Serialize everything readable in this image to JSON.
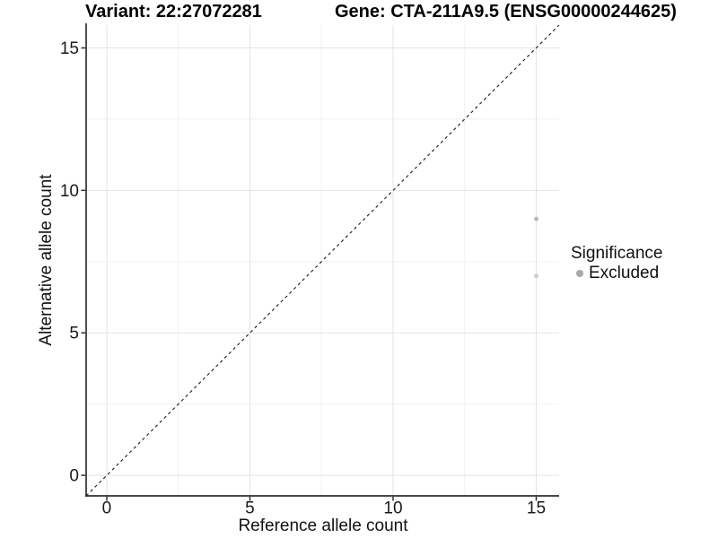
{
  "titles": {
    "variant": "Variant: 22:27072281",
    "gene": "Gene: CTA-211A9.5 (ENSG00000244625)"
  },
  "legend": {
    "title": "Significance",
    "items": [
      {
        "label": "Excluded",
        "color": "#a8a8a8"
      }
    ]
  },
  "chart_data": {
    "type": "scatter",
    "xlabel": "Reference allele count",
    "ylabel": "Alternative allele count",
    "xlim": [
      -0.72,
      15.8
    ],
    "ylim": [
      -0.72,
      15.8
    ],
    "x_ticks": [
      0,
      5,
      10,
      15
    ],
    "y_ticks": [
      0,
      5,
      10,
      15
    ],
    "x_minor_ticks": [
      2.5,
      7.5,
      12.5
    ],
    "y_minor_ticks": [
      2.5,
      7.5,
      12.5
    ],
    "grid": "major+minor",
    "legend_position": "right",
    "identity_line": {
      "type": "abline",
      "slope": 1,
      "intercept": 0,
      "style": "dashed",
      "color": "#1a1a1a"
    },
    "series": [
      {
        "name": "Excluded",
        "points": [
          {
            "x": 15,
            "y": 9,
            "color": "#b9b9b9"
          },
          {
            "x": 15,
            "y": 7,
            "color": "#cdcdcd"
          }
        ]
      }
    ],
    "colors": {
      "grid_major": "#e3e3e3",
      "grid_minor": "#f1f1f1",
      "axis_line": "#2e2e2e",
      "tick_text": "#1a1a1a",
      "background": "#ffffff"
    }
  }
}
